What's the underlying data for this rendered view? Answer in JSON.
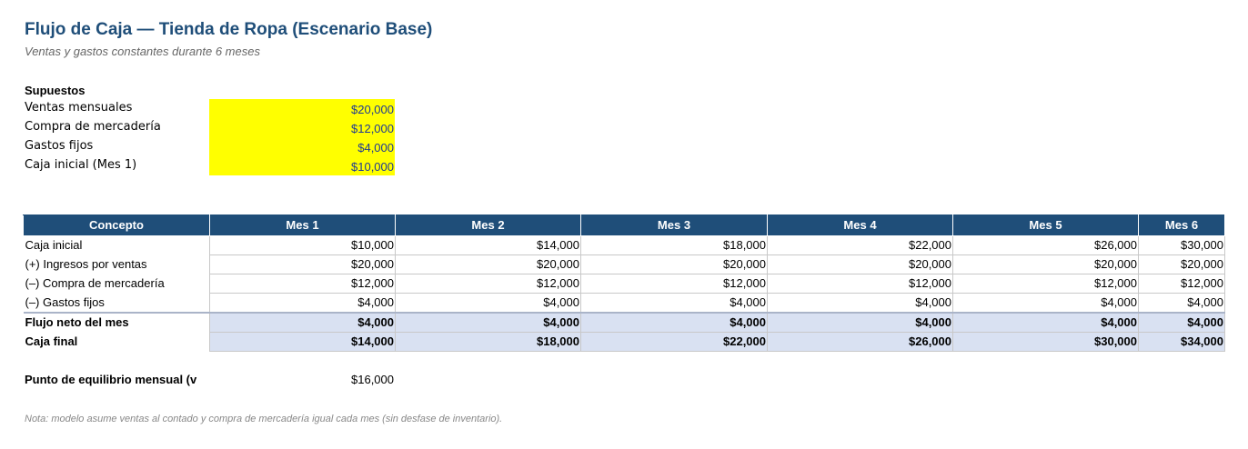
{
  "sheet": {
    "title": "Flujo de Caja — Tienda de Ropa (Escenario Base)",
    "subtitle": "Ventas y gastos constantes durante 6 meses"
  },
  "assumptions": {
    "heading": "Supuestos",
    "rows": [
      {
        "label": "Ventas mensuales",
        "value": "$20,000"
      },
      {
        "label": "Compra de mercadería",
        "value": "$12,000"
      },
      {
        "label": "Gastos fijos",
        "value": "$4,000"
      },
      {
        "label": "Caja inicial (Mes 1)",
        "value": "$10,000"
      }
    ]
  },
  "colors": {
    "header_bg": "#1f4e79",
    "input_fill": "#ffff00",
    "total_fill": "#d9e1f2"
  },
  "table": {
    "headers": [
      "Concepto",
      "Mes 1",
      "Mes 2",
      "Mes 3",
      "Mes 4",
      "Mes 5",
      "Mes 6"
    ],
    "rows": [
      {
        "label": "Caja inicial",
        "values": [
          "$10,000",
          "$14,000",
          "$18,000",
          "$22,000",
          "$26,000",
          "$30,000"
        ]
      },
      {
        "label": "(+) Ingresos por ventas",
        "values": [
          "$20,000",
          "$20,000",
          "$20,000",
          "$20,000",
          "$20,000",
          "$20,000"
        ]
      },
      {
        "label": "(–) Compra de mercadería",
        "values": [
          "$12,000",
          "$12,000",
          "$12,000",
          "$12,000",
          "$12,000",
          "$12,000"
        ]
      },
      {
        "label": "(–) Gastos fijos",
        "values": [
          "$4,000",
          "$4,000",
          "$4,000",
          "$4,000",
          "$4,000",
          "$4,000"
        ]
      },
      {
        "label": "Flujo neto del mes",
        "values": [
          "$4,000",
          "$4,000",
          "$4,000",
          "$4,000",
          "$4,000",
          "$4,000"
        ]
      },
      {
        "label": "Caja final",
        "values": [
          "$14,000",
          "$18,000",
          "$22,000",
          "$26,000",
          "$30,000",
          "$34,000"
        ]
      }
    ]
  },
  "breakeven": {
    "label": "Punto de equilibrio mensual (v",
    "value": "$16,000"
  },
  "note": "Nota: modelo asume ventas al contado y compra de mercadería igual cada mes (sin desfase de inventario)."
}
